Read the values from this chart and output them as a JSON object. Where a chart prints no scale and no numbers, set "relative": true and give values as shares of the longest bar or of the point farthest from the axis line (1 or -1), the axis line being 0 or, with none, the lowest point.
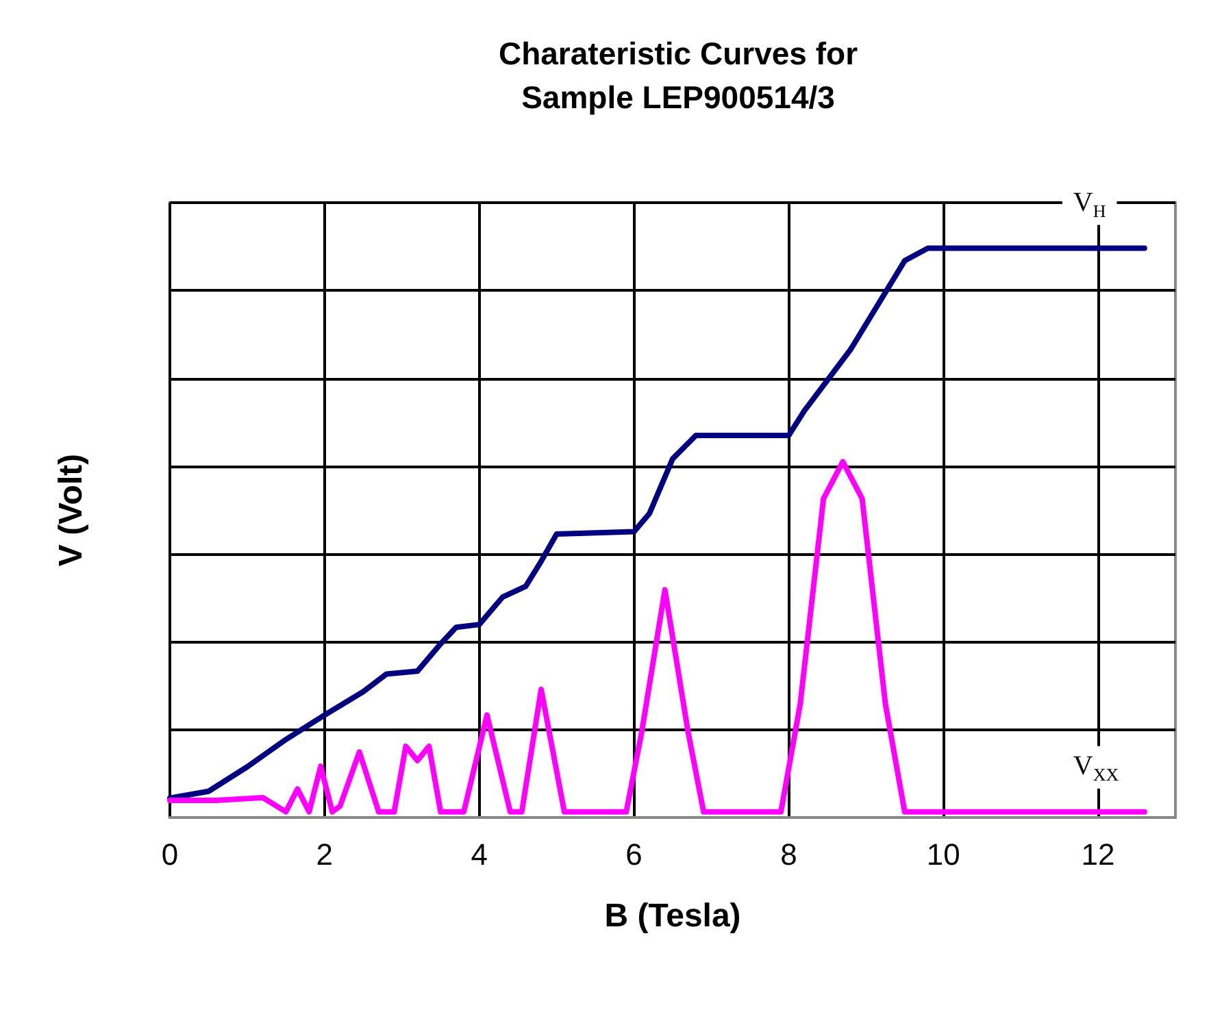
{
  "chart_data": {
    "type": "line",
    "title": "Charateristic Curves for\nSample LEP900514/3",
    "xlabel": "B (Tesla)",
    "ylabel": "V (Volt)",
    "relative": true,
    "grid": true,
    "legend": false,
    "marker": "none",
    "line_style": "solid",
    "xlim": [
      0,
      13
    ],
    "xticks": [
      0,
      2,
      4,
      6,
      8,
      10,
      12
    ],
    "series": [
      {
        "name": "V$_{H}$",
        "color": "#000080",
        "x": [
          0,
          0.5,
          1.0,
          1.5,
          2.0,
          2.5,
          2.8,
          3.2,
          3.5,
          3.7,
          4.0,
          4.3,
          4.6,
          4.8,
          5.0,
          6.0,
          6.2,
          6.5,
          6.8,
          8.0,
          8.2,
          8.8,
          9.5,
          9.8,
          12.6
        ],
        "values": [
          0.034,
          0.046,
          0.089,
          0.137,
          0.18,
          0.221,
          0.252,
          0.257,
          0.305,
          0.334,
          0.339,
          0.387,
          0.406,
          0.45,
          0.498,
          0.502,
          0.534,
          0.63,
          0.671,
          0.671,
          0.714,
          0.822,
          0.978,
          1,
          1
        ]
      },
      {
        "name": "V$_{XX}$",
        "color": "#ff00ff",
        "x": [
          0,
          0.6,
          1.2,
          1.5,
          1.65,
          1.8,
          1.95,
          2.1,
          2.2,
          2.45,
          2.7,
          2.9,
          3.05,
          3.2,
          3.35,
          3.5,
          3.8,
          4.1,
          4.4,
          4.55,
          4.8,
          5.1,
          5.9,
          6.1,
          6.4,
          6.7,
          6.9,
          7.9,
          8.15,
          8.45,
          8.7,
          8.95,
          9.25,
          9.5,
          12.6
        ],
        "values": [
          0.03,
          0.03,
          0.035,
          0.01,
          0.05,
          0.01,
          0.09,
          0.01,
          0.02,
          0.115,
          0.01,
          0.01,
          0.125,
          0.1,
          0.125,
          0.01,
          0.01,
          0.18,
          0.01,
          0.01,
          0.225,
          0.01,
          0.01,
          0.15,
          0.4,
          0.15,
          0.01,
          0.01,
          0.2,
          0.56,
          0.625,
          0.56,
          0.2,
          0.01,
          0.01
        ]
      }
    ]
  }
}
